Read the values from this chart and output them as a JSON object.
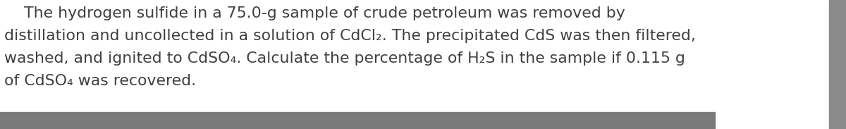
{
  "background_color": "#ffffff",
  "text_color": "#404040",
  "bottom_bar_color": "#7a7a7a",
  "right_border_color": "#8a8a8a",
  "font_size": 15.8,
  "line1": "    The hydrogen sulfide in a 75.0-g sample of crude petroleum was removed by",
  "line2": "distillation and uncollected in a solution of CdCl₂. The precipitated CdS was then filtered,",
  "line3": "washed, and ignited to CdSO₄. Calculate the percentage of H₂S in the sample if 0.115 g",
  "line4": "of CdSO₄ was recovered.",
  "fig_width": 12.0,
  "fig_height": 1.83,
  "dpi": 100
}
